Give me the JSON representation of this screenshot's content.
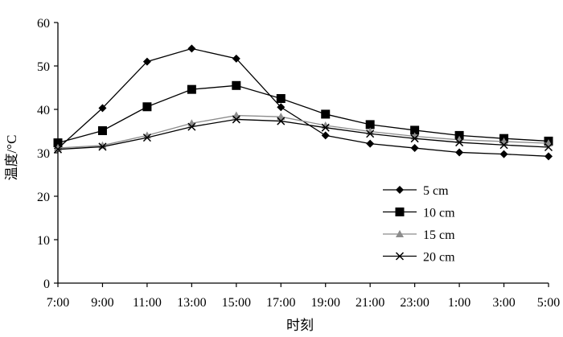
{
  "chart_data": {
    "type": "line",
    "title": "",
    "xlabel": "时刻",
    "ylabel": "温度/°C",
    "categories": [
      "7:00",
      "9:00",
      "11:00",
      "13:00",
      "15:00",
      "17:00",
      "19:00",
      "21:00",
      "23:00",
      "1:00",
      "3:00",
      "5:00"
    ],
    "ylim": [
      0,
      60
    ],
    "yticks": [
      "0",
      "10",
      "20",
      "30",
      "40",
      "50",
      "60"
    ],
    "grid": false,
    "legend_position": "right",
    "series": [
      {
        "name": "5 cm",
        "marker": "diamond",
        "color": "#000000",
        "values": [
          31.0,
          40.3,
          51.0,
          54.0,
          51.7,
          40.5,
          34.0,
          32.1,
          31.1,
          30.1,
          29.7,
          29.2
        ]
      },
      {
        "name": "10 cm",
        "marker": "square",
        "color": "#000000",
        "values": [
          32.3,
          35.1,
          40.6,
          44.6,
          45.5,
          42.5,
          38.9,
          36.5,
          35.2,
          34.0,
          33.3,
          32.7
        ]
      },
      {
        "name": "15 cm",
        "marker": "triangle",
        "color": "#8c8c8c",
        "values": [
          31.1,
          31.7,
          34.0,
          36.8,
          38.6,
          38.3,
          36.3,
          34.9,
          33.8,
          33.0,
          32.6,
          32.2
        ]
      },
      {
        "name": "20 cm",
        "marker": "cross",
        "color": "#000000",
        "values": [
          30.8,
          31.4,
          33.5,
          36.0,
          37.7,
          37.3,
          35.8,
          34.4,
          33.3,
          32.4,
          31.8,
          31.3
        ]
      }
    ]
  }
}
